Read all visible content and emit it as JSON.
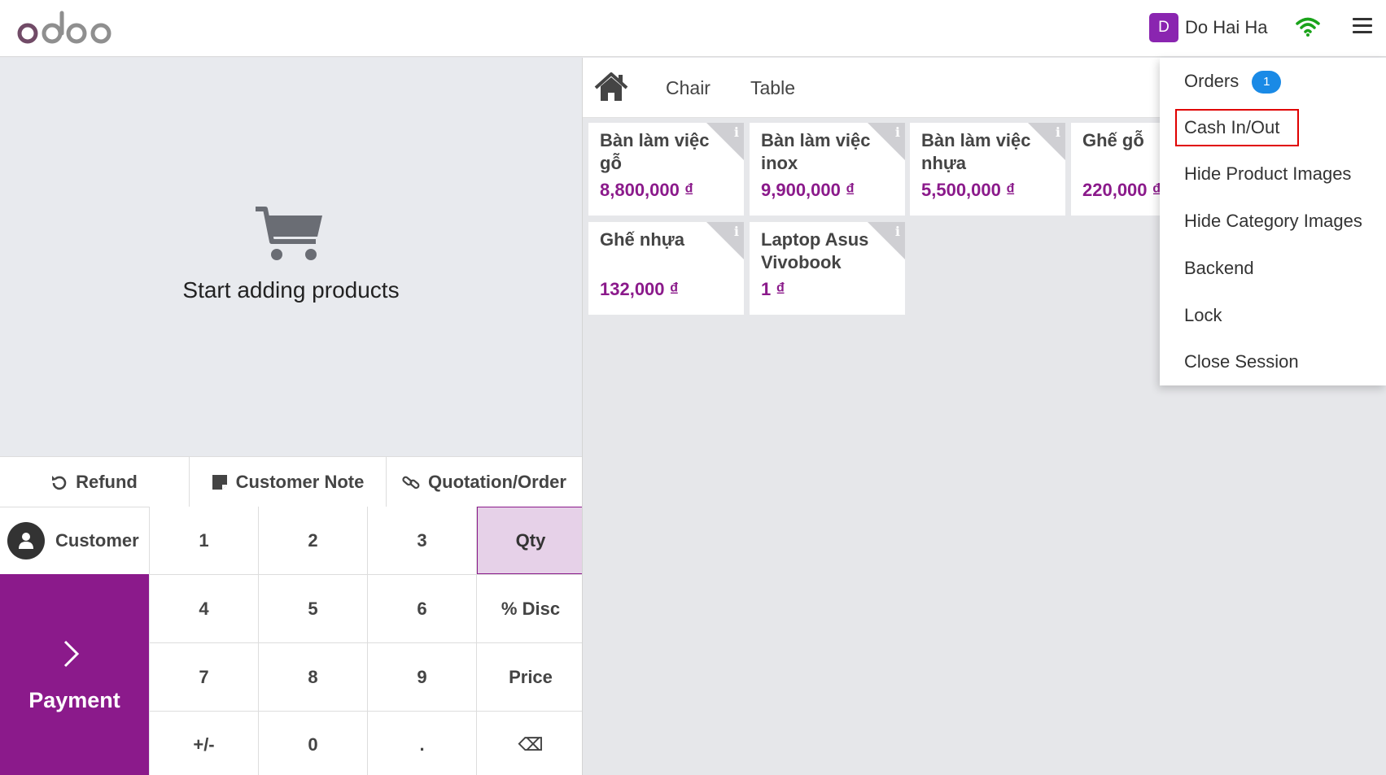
{
  "header": {
    "logo_text": "odoo",
    "user_initial": "D",
    "user_name": "Do Hai Ha"
  },
  "order": {
    "empty_message": "Start adding products"
  },
  "control_buttons": [
    {
      "label": "Refund",
      "icon": "undo-icon"
    },
    {
      "label": "Customer Note",
      "icon": "note-icon"
    },
    {
      "label": "Quotation/Order",
      "icon": "link-icon"
    }
  ],
  "customer_label": "Customer",
  "payment_label": "Payment",
  "numpad": {
    "k1": "1",
    "k2": "2",
    "k3": "3",
    "qty": "Qty",
    "k4": "4",
    "k5": "5",
    "k6": "6",
    "disc": "% Disc",
    "k7": "7",
    "k8": "8",
    "k9": "9",
    "price": "Price",
    "sign": "+/-",
    "k0": "0",
    "dot": ".",
    "backspace": "⌫"
  },
  "categories": [
    "Chair",
    "Table"
  ],
  "products": [
    {
      "name": "Bàn làm việc gỗ",
      "price": "8,800,000 ₫"
    },
    {
      "name": "Bàn làm việc inox",
      "price": "9,900,000 ₫"
    },
    {
      "name": "Bàn làm việc nhựa",
      "price": "5,500,000 ₫"
    },
    {
      "name": "Ghế gỗ",
      "price": "220,000 ₫"
    },
    {
      "name": "Ghế nhựa",
      "price": "132,000 ₫"
    },
    {
      "name": "Laptop Asus Vivobook",
      "price": "1 ₫"
    }
  ],
  "menu": {
    "orders": "Orders",
    "orders_count": "1",
    "cash": "Cash In/Out",
    "hide_product_images": "Hide Product Images",
    "hide_category_images": "Hide Category Images",
    "backend": "Backend",
    "lock": "Lock",
    "close_session": "Close Session"
  },
  "colors": {
    "brand": "#8b1a8b",
    "avatar": "#8a25b0",
    "badge": "#1a8ae6",
    "highlight": "#e00000",
    "wifi": "#1aa31a"
  }
}
